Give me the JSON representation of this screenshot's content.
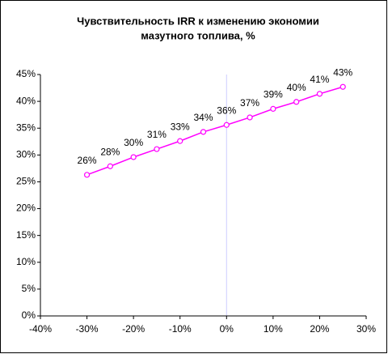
{
  "chart_data": {
    "type": "line",
    "title": [
      "Чувствительность IRR к  изменению  экономии",
      "мазутного топлива, %"
    ],
    "x": [
      -30,
      -25,
      -20,
      -15,
      -10,
      -5,
      0,
      5,
      10,
      15,
      20,
      25
    ],
    "series": [
      {
        "color": "#ff00ff",
        "values": [
          26.3,
          27.9,
          29.6,
          31.1,
          32.6,
          34.3,
          35.6,
          37.0,
          38.6,
          39.9,
          41.4,
          42.7
        ],
        "value_labels": [
          "26%",
          "28%",
          "30%",
          "31%",
          "33%",
          "34%",
          "36%",
          "37%",
          "39%",
          "40%",
          "41%",
          "43%"
        ]
      }
    ],
    "xlim": [
      -40,
      30
    ],
    "xticks": [
      {
        "value": -40,
        "label": "-40%"
      },
      {
        "value": -30,
        "label": "-30%"
      },
      {
        "value": -20,
        "label": "-20%"
      },
      {
        "value": -10,
        "label": "-10%"
      },
      {
        "value": 0,
        "label": "0%"
      },
      {
        "value": 10,
        "label": "10%"
      },
      {
        "value": 20,
        "label": "20%"
      },
      {
        "value": 30,
        "label": "30%"
      }
    ],
    "ylim": [
      0,
      45
    ],
    "yticks": [
      {
        "value": 0,
        "label": "0%"
      },
      {
        "value": 5,
        "label": "5%"
      },
      {
        "value": 10,
        "label": "10%"
      },
      {
        "value": 15,
        "label": "15%"
      },
      {
        "value": 20,
        "label": "20%"
      },
      {
        "value": 25,
        "label": "25%"
      },
      {
        "value": 30,
        "label": "30%"
      },
      {
        "value": 35,
        "label": "35%"
      },
      {
        "value": 40,
        "label": "40%"
      },
      {
        "value": 45,
        "label": "45%"
      }
    ]
  }
}
